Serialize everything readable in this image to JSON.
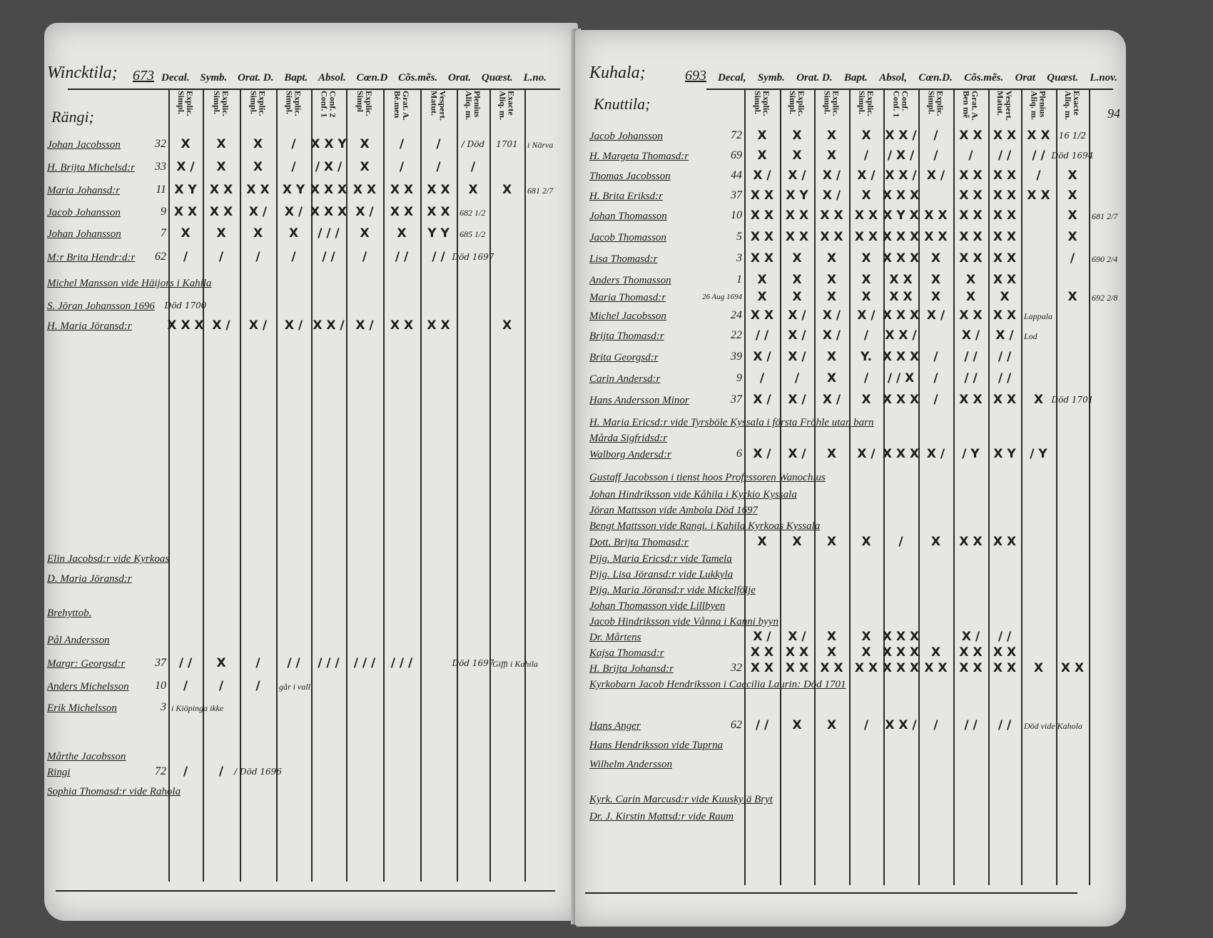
{
  "left_page": {
    "parish": "Wincktila;",
    "page_no": "673",
    "header_columns": [
      "Decal.",
      "Symb.",
      "Orat. D.",
      "Bapt.",
      "Absol.",
      "Cœn.D",
      "Cõs.mẽs.",
      "Orat.",
      "Quæst.",
      "L.no."
    ],
    "sub_columns": [
      [
        "Explic.",
        "Simpl."
      ],
      [
        "Explic.",
        "Simpl."
      ],
      [
        "Explic.",
        "Simpl."
      ],
      [
        "Explic.",
        "Simpl."
      ],
      [
        "Conf. 2",
        "Conf. 1"
      ],
      [
        "Explic.",
        "Simpl"
      ],
      [
        "Grat. A.",
        "Bé.men"
      ],
      [
        "Vespert.",
        "Matut."
      ],
      [
        "Plenius",
        "Aliq. m."
      ],
      [
        "Exacte",
        "Aliq. m."
      ]
    ],
    "section": "Rängi;",
    "rows": [
      {
        "name": "Johan Jacobsson",
        "age": "32",
        "marks": [
          "X",
          "X",
          "X",
          "/",
          "X X Y",
          "X",
          "/",
          "/",
          "/ Död",
          "1701"
        ],
        "note": "i Närva"
      },
      {
        "name": "H. Brijta Michelsd:r",
        "age": "33",
        "marks": [
          "X /",
          "X",
          "X",
          "/",
          "/ X /",
          "X",
          "/",
          "/",
          "/",
          ""
        ],
        "note": ""
      },
      {
        "name": "Maria Johansd:r",
        "age": "11",
        "marks": [
          "X Y",
          "X X",
          "X X",
          "X Y",
          "X X X",
          "X X",
          "X X",
          "X X",
          "X",
          "X"
        ],
        "note": "681 2/7"
      },
      {
        "name": "Jacob Johansson",
        "age": "9",
        "marks": [
          "X X",
          "X X",
          "X /",
          "X /",
          "X X X",
          "X /",
          "X X",
          "X X",
          "",
          ""
        ],
        "note": "682 1/2"
      },
      {
        "name": "Johan Johansson",
        "age": "7",
        "marks": [
          "X",
          "X",
          "X",
          "X",
          "/ / /",
          "X",
          "X",
          "Y Y",
          "",
          ""
        ],
        "note": "685 1/2"
      },
      {
        "name": "M:r Brita Hendr:d:r",
        "age": "62",
        "marks": [
          "/",
          "/",
          "/",
          "/",
          "/ /",
          "/",
          "/ /",
          "/ /",
          "Död 1697",
          ""
        ],
        "note": ""
      },
      {
        "name": "Michel Mansson  vide  Häijors i Kahila",
        "age": "",
        "marks": [],
        "note": ""
      },
      {
        "name": "S. Jöran Johansson 1696",
        "age": "",
        "marks": [
          "Död 1700"
        ],
        "note": ""
      },
      {
        "name": "H. Maria Jöransd:r",
        "age": "",
        "marks": [
          "X X X",
          "X /",
          "X /",
          "X /",
          "X X /",
          "X /",
          "X X",
          "X X",
          "",
          "X"
        ],
        "note": ""
      },
      {
        "name": "Elin Jacobsd:r vide Kyrkoas",
        "age": "",
        "marks": [],
        "note": ""
      },
      {
        "name": "D. Maria Jöransd:r",
        "age": "",
        "marks": [],
        "note": ""
      },
      {
        "name": "Brehyttob.",
        "age": "",
        "marks": [],
        "note": ""
      },
      {
        "name": "Pål Andersson",
        "age": "",
        "marks": [],
        "note": ""
      },
      {
        "name": "Margr: Georgsd:r",
        "age": "37",
        "marks": [
          "/ /",
          "X",
          "/",
          "/ /",
          "/ / /",
          "/ / /",
          "/ / /",
          "",
          "Död 1697",
          ""
        ],
        "note": "Gifft i Kahila"
      },
      {
        "name": "Anders Michelsson",
        "age": "10",
        "marks": [
          "/",
          "/",
          "/",
          "",
          "",
          "",
          "",
          "",
          "",
          ""
        ],
        "note": "går i vall"
      },
      {
        "name": "Erik Michelsson",
        "age": "3",
        "marks": [],
        "note": "i Kiöpinga ikke"
      },
      {
        "name": "Mårthe Jacobsson",
        "age": "",
        "marks": [],
        "note": ""
      },
      {
        "name": "Ringi",
        "age": "72",
        "marks": [
          "/",
          "/",
          "/ Död 1696"
        ],
        "note": ""
      },
      {
        "name": "Sophia Thomasd:r vide Rahola",
        "age": "",
        "marks": [],
        "note": ""
      }
    ]
  },
  "right_page": {
    "parish": "Kuhala;",
    "page_no": "693",
    "header_columns": [
      "Decal,",
      "Symb.",
      "Orat. D.",
      "Bapt.",
      "Absol,",
      "Cœn.D.",
      "Cõs.mẽs.",
      "Orat",
      "Quæst.",
      "L.nov."
    ],
    "sub_columns": [
      [
        "Explic.",
        "Simpl."
      ],
      [
        "Explic.",
        "Simpl."
      ],
      [
        "Explic.",
        "Simpl."
      ],
      [
        "Explic.",
        "Simpl."
      ],
      [
        "Conf.",
        "Conf. 1"
      ],
      [
        "Explic.",
        "Simpl."
      ],
      [
        "Grat. A.",
        "Ben mẽ"
      ],
      [
        "Vespert.",
        "Matut."
      ],
      [
        "Plenius",
        "Aliq. m."
      ],
      [
        "Exacte",
        "Aliq. m."
      ]
    ],
    "section": "Knuttila;",
    "margin_number": "94",
    "rows": [
      {
        "name": "Jacob Johansson",
        "age": "72",
        "marks": [
          "X",
          "X",
          "X",
          "X",
          "X X /",
          "/",
          "X X",
          "X X",
          "X X",
          "16 1/2"
        ],
        "note": ""
      },
      {
        "name": "H. Margeta Thomasd:r",
        "age": "69",
        "marks": [
          "X",
          "X",
          "X",
          "/",
          "/ X /",
          "/",
          "/",
          "/ /",
          "/ /",
          "Död 1694"
        ],
        "note": ""
      },
      {
        "name": "Thomas Jacobsson",
        "age": "44",
        "marks": [
          "X /",
          "X /",
          "X /",
          "X /",
          "X X /",
          "X /",
          "X X",
          "X X",
          "/",
          "X"
        ],
        "note": ""
      },
      {
        "name": "H. Brita Eriksd:r",
        "age": "37",
        "marks": [
          "X X",
          "X Y",
          "X /",
          "X",
          "X X X",
          "",
          "X X",
          "X X",
          "X X",
          "X"
        ],
        "note": ""
      },
      {
        "name": "Johan Thomasson",
        "age": "10",
        "marks": [
          "X X",
          "X X",
          "X X",
          "X X",
          "X Y X",
          "X X",
          "X X",
          "X X",
          "",
          "X"
        ],
        "note": "681 2/7"
      },
      {
        "name": "Jacob Thomasson",
        "age": "5",
        "marks": [
          "X X",
          "X X",
          "X X",
          "X X",
          "X X X",
          "X X",
          "X X",
          "X X",
          "",
          "X"
        ],
        "note": ""
      },
      {
        "name": "Lisa Thomasd:r",
        "age": "3",
        "marks": [
          "X X",
          "X",
          "X",
          "X",
          "X X X",
          "X",
          "X X",
          "X X",
          "",
          "/"
        ],
        "note": "690 2/4"
      },
      {
        "name": "Anders Thomasson",
        "age": "1",
        "marks": [
          "X",
          "X",
          "X",
          "X",
          "X X",
          "X",
          "X",
          "X X",
          "",
          ""
        ],
        "note": ""
      },
      {
        "name": "Maria Thomasd:r",
        "age": "26 Aug 1694",
        "marks": [
          "X",
          "X",
          "X",
          "X",
          "X X",
          "X",
          "X",
          "X",
          "",
          "X"
        ],
        "note": "692 2/8"
      },
      {
        "name": "Michel Jacobsson",
        "age": "24",
        "marks": [
          "X X",
          "X /",
          "X /",
          "X /",
          "X X X",
          "X /",
          "X X",
          "X X",
          "",
          ""
        ],
        "note": "Lappala"
      },
      {
        "name": "Brijta Thomasd:r",
        "age": "22",
        "marks": [
          "/ /",
          "X /",
          "X /",
          "/",
          "X X /",
          "",
          "X /",
          "X /",
          "",
          ""
        ],
        "note": "Lod"
      },
      {
        "name": "Brita Georgsd:r",
        "age": "39",
        "marks": [
          "X /",
          "X /",
          "X",
          "Y.",
          "X X X",
          "/",
          "/ /",
          "/ /",
          "",
          ""
        ],
        "note": ""
      },
      {
        "name": "Carin Andersd:r",
        "age": "9",
        "marks": [
          "/",
          "/",
          "X",
          "/",
          "/ / X",
          "/",
          "/ /",
          "/ /",
          "",
          ""
        ],
        "note": ""
      },
      {
        "name": "Hans Andersson Minor",
        "age": "37",
        "marks": [
          "X /",
          "X /",
          "X /",
          "X",
          "X X X",
          "/",
          "X X",
          "X X",
          "X",
          "Död 1701"
        ],
        "note": ""
      },
      {
        "name": "H. Maria Ericsd:r vide  Tyrsböle Kyssala i första Fröhle utan barn",
        "age": "",
        "marks": [],
        "note": ""
      },
      {
        "name": "Mårda Sigfridsd:r",
        "age": "",
        "marks": [],
        "note": ""
      },
      {
        "name": "Walborg Andersd:r",
        "age": "6",
        "marks": [
          "X /",
          "X /",
          "X",
          "X /",
          "X X X",
          "X /",
          "/ Y",
          "X Y",
          "/ Y",
          ""
        ],
        "note": ""
      },
      {
        "name": "Gustaff Jacobsson  i tienst hoos Professoren Wanochius",
        "age": "",
        "marks": [],
        "note": ""
      },
      {
        "name": "Johan Hindriksson vide Kåhila  i Kyrkio Kyssala",
        "age": "",
        "marks": [],
        "note": ""
      },
      {
        "name": "Jöran Mattsson vide Ambola   Död 1697",
        "age": "",
        "marks": [],
        "note": ""
      },
      {
        "name": "Bengt Mattsson vide Rangi. i Kahila  Kyrkoas Kyssala",
        "age": "",
        "marks": [],
        "note": ""
      },
      {
        "name": "Dott. Brijta Thomasd:r",
        "age": "",
        "marks": [
          "X",
          "X",
          "X",
          "X",
          "/",
          "X",
          "X X",
          "X X",
          "",
          ""
        ],
        "note": ""
      },
      {
        "name": "Pijg. Maria Ericsd:r  vide Tamela",
        "age": "",
        "marks": [],
        "note": ""
      },
      {
        "name": "Pijg. Lisa Jöransd:r  vide Lukkyla",
        "age": "",
        "marks": [],
        "note": ""
      },
      {
        "name": "Pijg. Maria Jöransd:r  vide Mickelfölje",
        "age": "",
        "marks": [],
        "note": ""
      },
      {
        "name": "Johan Thomasson  vide Lillbyen",
        "age": "",
        "marks": [],
        "note": ""
      },
      {
        "name": "Jacob Hindriksson vide Vånna i Kanni byyn",
        "age": "",
        "marks": [],
        "note": ""
      },
      {
        "name": "Dr. Mårtens",
        "age": "",
        "marks": [
          "X /",
          "X /",
          "X",
          "X",
          "X X X",
          "",
          "X /",
          "/ /",
          "",
          ""
        ],
        "note": ""
      },
      {
        "name": "Kajsa Thomasd:r",
        "age": "",
        "marks": [
          "X X",
          "X X",
          "X",
          "X",
          "X X X",
          "X",
          "X X",
          "X X",
          "",
          ""
        ],
        "note": ""
      },
      {
        "name": "H. Brijta Johansd:r",
        "age": "32",
        "marks": [
          "X X",
          "X X",
          "X X",
          "X X",
          "X X X",
          "X X",
          "X X",
          "X X",
          "X",
          "X X"
        ],
        "note": ""
      },
      {
        "name": "Kyrkobarn Jacob Hendriksson  i Caecilia Laurin: Död 1701",
        "age": "",
        "marks": [],
        "note": ""
      },
      {
        "name": "Hans Anger",
        "age": "62",
        "marks": [
          "/ /",
          "X",
          "X",
          "/",
          "X X /",
          "/",
          "/ /",
          "/ /",
          "",
          ""
        ],
        "note": "Död vide Kahola"
      },
      {
        "name": "Hans Hendriksson  vide Tuprna",
        "age": "",
        "marks": [],
        "note": ""
      },
      {
        "name": "Wilhelm Andersson",
        "age": "",
        "marks": [],
        "note": ""
      },
      {
        "name": "Kyrk. Carin Marcusd:r vide  Kuuskylä Bryt",
        "age": "",
        "marks": [],
        "note": ""
      },
      {
        "name": "Dr. J. Kirstin Mattsd:r  vide Raum",
        "age": "",
        "marks": [],
        "note": ""
      }
    ]
  }
}
